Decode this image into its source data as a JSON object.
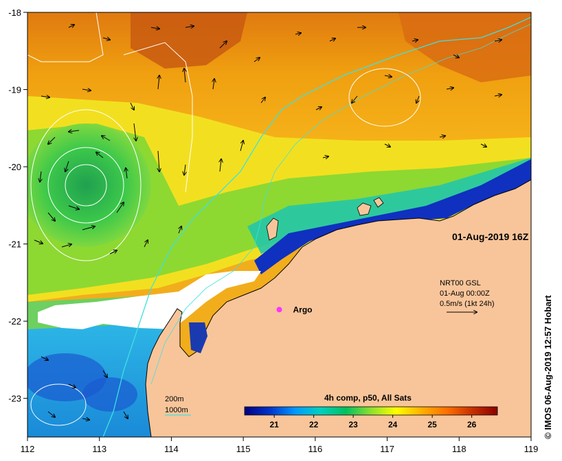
{
  "map": {
    "timestamp": "01-Aug-2019 16Z",
    "credit": "© IMOS 06-Aug-2019 12:57 Hobart",
    "x_ticks": [
      "112",
      "113",
      "114",
      "115",
      "116",
      "117",
      "118",
      "119"
    ],
    "y_ticks": [
      "-18",
      "-19",
      "-20",
      "-21",
      "-22",
      "-23"
    ],
    "lon_range": [
      112,
      119
    ],
    "lat_range": [
      -23.5,
      -18
    ],
    "argo": {
      "label": "Argo",
      "lon": 115.5,
      "lat": -21.85,
      "color": "#ff33ff"
    },
    "current_info": {
      "line1": "NRT00 GSL",
      "line2": "01-Aug 00:00Z",
      "line3": "0.5m/s (1kt 24h)"
    },
    "legend": {
      "iso200": "200m",
      "iso1000": "1000m",
      "iso1000_color": "#40e0e0"
    },
    "colorbar": {
      "title": "4h comp, p50, All Sats",
      "range": [
        20.25,
        26.65
      ],
      "ticks": [
        "21",
        "22",
        "23",
        "24",
        "25",
        "26"
      ],
      "colors": [
        "#000080",
        "#0033cc",
        "#0099ff",
        "#00d0c0",
        "#00c060",
        "#8ee030",
        "#ffff00",
        "#ffb000",
        "#ff7000",
        "#c83000",
        "#8b0000"
      ]
    },
    "land_color": "#f8c59a",
    "cloud_color": "#ffffff"
  }
}
